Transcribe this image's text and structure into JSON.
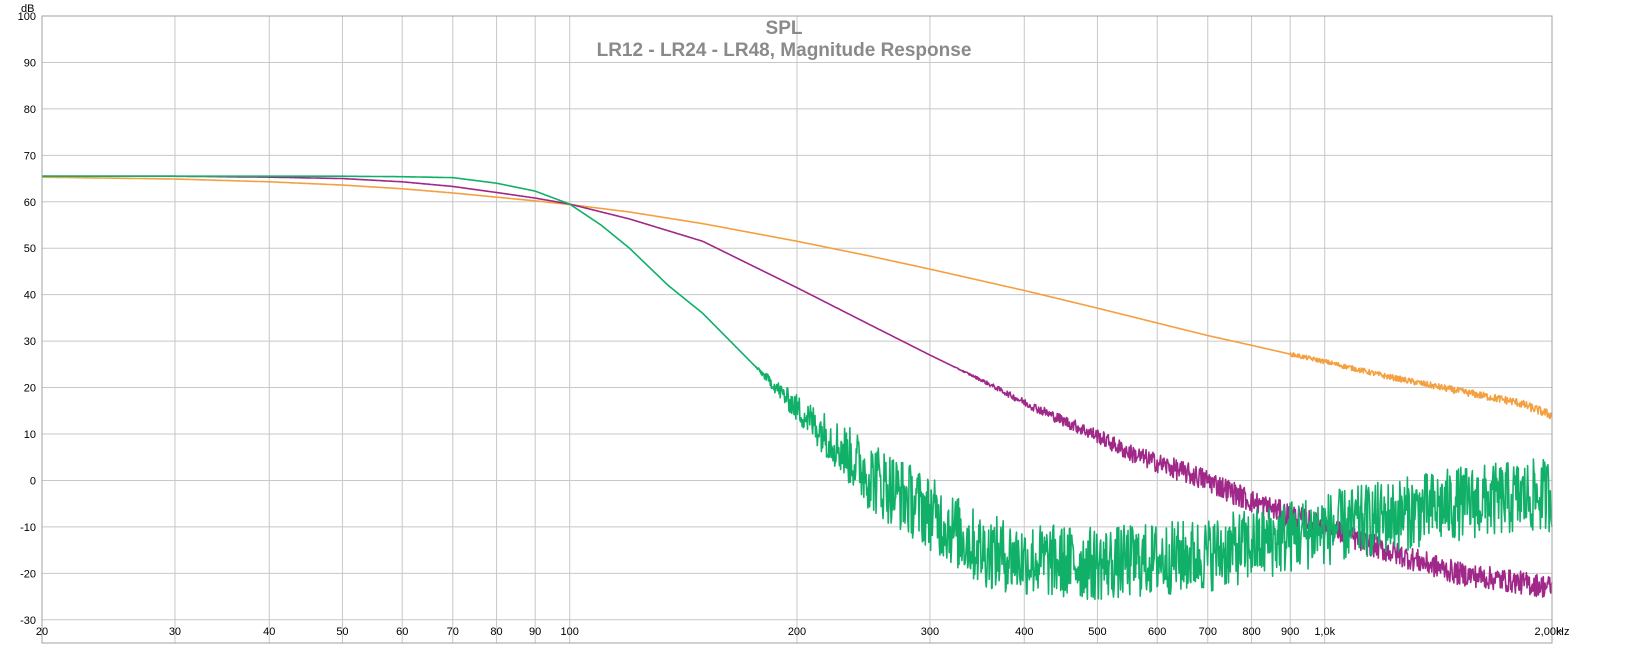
{
  "chart_data": {
    "type": "line",
    "title": "SPL",
    "subtitle": "LR12 - LR24 - LR48, Magnitude Response",
    "ylabel": "dB",
    "xunit": "Hz",
    "xscale": "log",
    "xlim": [
      20,
      2000
    ],
    "ylim": [
      -35,
      100
    ],
    "grid": true,
    "yticks": [
      100,
      90,
      80,
      70,
      60,
      50,
      40,
      30,
      20,
      10,
      0,
      -10,
      -20,
      -30
    ],
    "yticklabels": [
      "100",
      "90",
      "80",
      "70",
      "60",
      "50",
      "40",
      "30",
      "20",
      "10",
      "0",
      "-10",
      "-20",
      "-30"
    ],
    "xticks": [
      20,
      30,
      40,
      50,
      60,
      70,
      80,
      90,
      100,
      200,
      300,
      400,
      500,
      600,
      700,
      800,
      900,
      1000,
      2000
    ],
    "xticklabels": [
      "20",
      "30",
      "40",
      "50",
      "60",
      "70",
      "80",
      "90",
      "100",
      "200",
      "300",
      "400",
      "500",
      "600",
      "700",
      "800",
      "900",
      "1,0k",
      "2,00k"
    ],
    "series": [
      {
        "color": "#f4a040",
        "x": [
          20,
          30,
          40,
          50,
          60,
          70,
          80,
          90,
          100,
          120,
          150,
          200,
          250,
          300,
          400,
          500,
          600,
          700,
          800,
          900,
          1000,
          1200,
          1500,
          1800,
          2000
        ],
        "y": [
          65.3,
          64.9,
          64.3,
          63.6,
          62.8,
          61.9,
          61.0,
          60.2,
          59.4,
          57.8,
          55.3,
          51.5,
          48.3,
          45.5,
          40.9,
          37.1,
          33.9,
          31.2,
          29.1,
          27.2,
          25.6,
          22.5,
          19.3,
          16.8,
          14.0
        ],
        "noise": 1.0
      },
      {
        "color": "#a02888",
        "x": [
          20,
          30,
          40,
          50,
          60,
          70,
          80,
          90,
          100,
          120,
          150,
          200,
          250,
          300,
          350,
          400,
          450,
          500,
          550,
          600,
          700,
          800,
          900,
          1000,
          1200,
          1500,
          2000
        ],
        "y": [
          65.5,
          65.5,
          65.3,
          65.0,
          64.3,
          63.3,
          62.0,
          60.8,
          59.5,
          56.3,
          51.5,
          41.5,
          33.5,
          27.0,
          21.7,
          16.8,
          12.9,
          9.6,
          6.0,
          3.8,
          0.0,
          -4.5,
          -7.5,
          -10.0,
          -15.0,
          -20.0,
          -23.0
        ],
        "noise": 2.5
      },
      {
        "color": "#10b068",
        "x": [
          20,
          30,
          40,
          50,
          60,
          70,
          80,
          90,
          100,
          110,
          120,
          135,
          150,
          175,
          200,
          225,
          250,
          275,
          300,
          350,
          400,
          500,
          600,
          700,
          800,
          900,
          1000,
          1200,
          1500,
          2000
        ],
        "y": [
          65.5,
          65.5,
          65.5,
          65.5,
          65.4,
          65.2,
          64.0,
          62.3,
          59.5,
          55.0,
          50.0,
          42.0,
          36.0,
          25.0,
          15.5,
          8.0,
          1.0,
          -3.0,
          -7.0,
          -15.0,
          -17.0,
          -18.0,
          -17.0,
          -16.0,
          -14.0,
          -12.0,
          -10.5,
          -8.0,
          -5.0,
          -3.0
        ],
        "noise": 8.0
      }
    ]
  }
}
